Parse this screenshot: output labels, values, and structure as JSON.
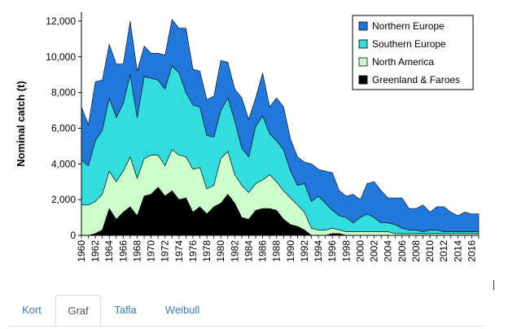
{
  "chart_data": {
    "type": "area",
    "stacked": true,
    "ylabel": "Nominal catch (t)",
    "xlabel": "",
    "ylim": [
      0,
      12500
    ],
    "yticks": [
      0,
      2000,
      4000,
      6000,
      8000,
      10000,
      12000
    ],
    "ytick_labels": [
      "0",
      "2,000",
      "4,000",
      "6,000",
      "8,000",
      "10,000",
      "12,000"
    ],
    "xlim": [
      1960,
      2017
    ],
    "xtick_labels": [
      "1960",
      "1962",
      "1964",
      "1966",
      "1968",
      "1970",
      "1972",
      "1974",
      "1976",
      "1978",
      "1980",
      "1982",
      "1984",
      "1986",
      "1988",
      "1990",
      "1992",
      "1994",
      "1996",
      "1998",
      "2000",
      "2002",
      "2004",
      "2006",
      "2008",
      "2010",
      "2012",
      "2014",
      "2016"
    ],
    "grid": false,
    "legend_position": "top-right",
    "x": [
      1960,
      1961,
      1962,
      1963,
      1964,
      1965,
      1966,
      1967,
      1968,
      1969,
      1970,
      1971,
      1972,
      1973,
      1974,
      1975,
      1976,
      1977,
      1978,
      1979,
      1980,
      1981,
      1982,
      1983,
      1984,
      1985,
      1986,
      1987,
      1988,
      1989,
      1990,
      1991,
      1992,
      1993,
      1994,
      1995,
      1996,
      1997,
      1998,
      1999,
      2000,
      2001,
      2002,
      2003,
      2004,
      2005,
      2006,
      2007,
      2008,
      2009,
      2010,
      2011,
      2012,
      2013,
      2014,
      2015,
      2016,
      2017
    ],
    "series": [
      {
        "name": "Greenland & Faroes",
        "color": "#000000",
        "values": [
          0,
          0,
          100,
          300,
          1500,
          900,
          1300,
          1600,
          1100,
          2200,
          2300,
          2700,
          2200,
          2500,
          2000,
          2100,
          1300,
          1600,
          1200,
          1600,
          1800,
          2300,
          1800,
          1000,
          900,
          1400,
          1500,
          1500,
          1400,
          900,
          600,
          500,
          300,
          0,
          0,
          0,
          100,
          100,
          0,
          0,
          0,
          0,
          0,
          0,
          0,
          0,
          0,
          0,
          0,
          0,
          0,
          0,
          0,
          0,
          0,
          0,
          0,
          0
        ]
      },
      {
        "name": "North America",
        "color": "#ccffcc",
        "values": [
          1700,
          1700,
          1800,
          2000,
          2100,
          2100,
          2300,
          2800,
          2100,
          2100,
          2200,
          1800,
          1700,
          2300,
          2500,
          2300,
          2400,
          2200,
          1400,
          1200,
          2500,
          2400,
          1600,
          1800,
          1500,
          1500,
          1600,
          1900,
          1600,
          1600,
          1500,
          1200,
          1000,
          400,
          300,
          300,
          300,
          200,
          200,
          200,
          200,
          200,
          200,
          200,
          200,
          100,
          100,
          100,
          100,
          100,
          100,
          100,
          100,
          100,
          100,
          100,
          100,
          100
        ]
      },
      {
        "name": "Southern Europe",
        "color": "#33dddd",
        "values": [
          2500,
          2200,
          3400,
          3600,
          4100,
          3600,
          3800,
          4600,
          3400,
          4600,
          4300,
          4200,
          4300,
          4700,
          4600,
          3600,
          3600,
          3400,
          3000,
          2700,
          2700,
          3000,
          3000,
          2100,
          2000,
          3200,
          3600,
          2300,
          2300,
          2300,
          1500,
          1100,
          1600,
          1500,
          1900,
          1500,
          1000,
          800,
          800,
          500,
          800,
          1000,
          800,
          500,
          500,
          500,
          300,
          200,
          200,
          100,
          200,
          200,
          100,
          100,
          100,
          100,
          100,
          100
        ]
      },
      {
        "name": "Northern Europe",
        "color": "#2277dd",
        "values": [
          3000,
          2300,
          3300,
          2800,
          3000,
          3000,
          2200,
          3000,
          2600,
          1700,
          1400,
          1500,
          1900,
          2600,
          2500,
          3600,
          2000,
          2000,
          2000,
          2300,
          2800,
          2000,
          1800,
          2800,
          2100,
          1600,
          2400,
          1500,
          2400,
          2400,
          1800,
          1600,
          1200,
          2100,
          1500,
          1800,
          2100,
          1400,
          1200,
          1600,
          1000,
          1700,
          2000,
          1800,
          1400,
          1500,
          1700,
          1200,
          1200,
          1500,
          1000,
          1300,
          1400,
          1100,
          900,
          1100,
          1000,
          1000
        ]
      }
    ]
  },
  "tabs": [
    {
      "label": "Kort"
    },
    {
      "label": "Graf"
    },
    {
      "label": "Tafla"
    },
    {
      "label": "Weibull"
    }
  ]
}
